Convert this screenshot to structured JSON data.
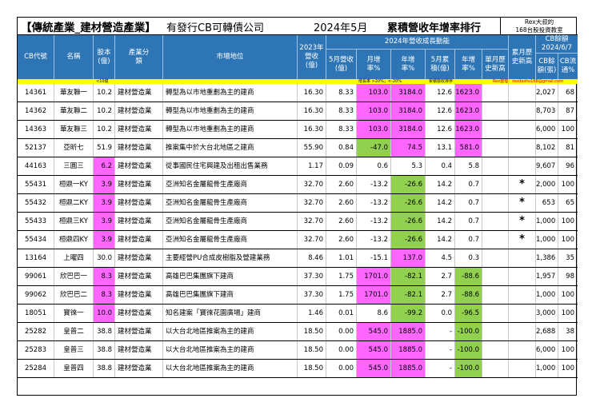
{
  "title": {
    "bracket": "【傳統產業_建材營造產業】",
    "subtitle": "有發行CB可轉債公司",
    "period": "2024年5月",
    "ranking": "累積營收年增率排行"
  },
  "brand": {
    "line1": "Rex大叔的",
    "line2": "168台股投資教室"
  },
  "headers": {
    "cb_code": "CB代號",
    "name": "名稱",
    "capital": "股本(億)",
    "industry": "產業分類",
    "market_position": "市場地位",
    "revenue_2023": "2023年營收(億)",
    "group_title": "2024年營收成長動能",
    "may_rev": "5月營收(億)",
    "mom": "月增率%",
    "yoy": "年增率%",
    "may_cum": "5月累積(億)",
    "cum_yoy": "年增率%",
    "month_high": "單月歷史新高",
    "cum_high": "累月歷史新高",
    "cb_balance_title": "CB餘額",
    "cb_date": "2024/6/7",
    "cb_amount": "CB餘額(張)",
    "cb_liquidity": "CB流通%"
  },
  "notes": {
    "capital_note": "<10億",
    "growth_note": "增長率 >20%；<-20%",
    "cum_note": "累積營收排序",
    "credit": "Rex整理：rexdashu168@gmail.com"
  },
  "colors": {
    "header_bg": "#2e75b6",
    "note_bg": "#ffff00",
    "pink": "#ff66ff",
    "green": "#92d050"
  },
  "rows": [
    {
      "code": "14361",
      "name": "華友聯一",
      "capital": "10.2",
      "industry": "建材營造業",
      "position": "轉型為以市地重劃為主的建商",
      "rev2023": "16.30",
      "may": "8.33",
      "mom": "103.0",
      "yoy": "3184.0",
      "cum": "12.6",
      "cum_yoy": "1623.0",
      "mh": "",
      "ch": "",
      "cb_amt": "2,027",
      "cb_pct": "68",
      "hl_cap": false,
      "mom_c": "pink",
      "yoy_c": "pink",
      "cyoy_c": "pink"
    },
    {
      "code": "14362",
      "name": "華友聯二",
      "capital": "10.2",
      "industry": "建材營造業",
      "position": "轉型為以市地重劃為主的建商",
      "rev2023": "16.30",
      "may": "8.33",
      "mom": "103.0",
      "yoy": "3184.0",
      "cum": "12.6",
      "cum_yoy": "1623.0",
      "mh": "",
      "ch": "",
      "cb_amt": "8,703",
      "cb_pct": "87",
      "hl_cap": false,
      "mom_c": "pink",
      "yoy_c": "pink",
      "cyoy_c": "pink"
    },
    {
      "code": "14363",
      "name": "華友聯三",
      "capital": "10.2",
      "industry": "建材營造業",
      "position": "轉型為以市地重劃為主的建商",
      "rev2023": "16.30",
      "may": "8.33",
      "mom": "103.0",
      "yoy": "3184.0",
      "cum": "12.6",
      "cum_yoy": "1623.0",
      "mh": "",
      "ch": "",
      "cb_amt": "6,000",
      "cb_pct": "100",
      "hl_cap": false,
      "mom_c": "pink",
      "yoy_c": "pink",
      "cyoy_c": "pink"
    },
    {
      "code": "52137",
      "name": "亞昕七",
      "capital": "51.9",
      "industry": "建材營造業",
      "position": "推案集中於大台北地區之建商",
      "rev2023": "55.90",
      "may": "0.84",
      "mom": "-47.0",
      "yoy": "74.5",
      "cum": "13.1",
      "cum_yoy": "581.0",
      "mh": "",
      "ch": "",
      "cb_amt": "8,102",
      "cb_pct": "81",
      "hl_cap": false,
      "mom_c": "green",
      "yoy_c": "pink",
      "cyoy_c": "pink"
    },
    {
      "code": "44163",
      "name": "三圓三",
      "capital": "6.2",
      "industry": "建材營造業",
      "position": "從事國民住宅興建及出租出售業務",
      "rev2023": "1.17",
      "may": "0.09",
      "mom": "0.6",
      "yoy": "5.3",
      "cum": "0.4",
      "cum_yoy": "5.8",
      "mh": "",
      "ch": "",
      "cb_amt": "9,607",
      "cb_pct": "96",
      "hl_cap": true,
      "mom_c": "",
      "yoy_c": "",
      "cyoy_c": ""
    },
    {
      "code": "55431",
      "name": "桓鼎一KY",
      "capital": "3.9",
      "industry": "建材營造業",
      "position": "亞洲知名金屬龍骨生產廠商",
      "rev2023": "32.70",
      "may": "2.60",
      "mom": "-13.2",
      "yoy": "-26.6",
      "cum": "14.2",
      "cum_yoy": "0.7",
      "mh": "",
      "ch": "*",
      "cb_amt": "2,000",
      "cb_pct": "100",
      "hl_cap": true,
      "mom_c": "",
      "yoy_c": "green",
      "cyoy_c": ""
    },
    {
      "code": "55432",
      "name": "桓鼎二KY",
      "capital": "3.9",
      "industry": "建材營造業",
      "position": "亞洲知名金屬龍骨生產廠商",
      "rev2023": "32.70",
      "may": "2.60",
      "mom": "-13.2",
      "yoy": "-26.6",
      "cum": "14.2",
      "cum_yoy": "0.7",
      "mh": "",
      "ch": "*",
      "cb_amt": "653",
      "cb_pct": "65",
      "hl_cap": true,
      "mom_c": "",
      "yoy_c": "green",
      "cyoy_c": ""
    },
    {
      "code": "55433",
      "name": "桓鼎三KY",
      "capital": "3.9",
      "industry": "建材營造業",
      "position": "亞洲知名金屬龍骨生產廠商",
      "rev2023": "32.70",
      "may": "2.60",
      "mom": "-13.2",
      "yoy": "-26.6",
      "cum": "14.2",
      "cum_yoy": "0.7",
      "mh": "",
      "ch": "*",
      "cb_amt": "1,000",
      "cb_pct": "100",
      "hl_cap": true,
      "mom_c": "",
      "yoy_c": "green",
      "cyoy_c": ""
    },
    {
      "code": "55434",
      "name": "桓鼎四KY",
      "capital": "3.9",
      "industry": "建材營造業",
      "position": "亞洲知名金屬龍骨生產廠商",
      "rev2023": "32.70",
      "may": "2.60",
      "mom": "-13.2",
      "yoy": "-26.6",
      "cum": "14.2",
      "cum_yoy": "0.7",
      "mh": "",
      "ch": "*",
      "cb_amt": "1,000",
      "cb_pct": "100",
      "hl_cap": true,
      "mom_c": "",
      "yoy_c": "green",
      "cyoy_c": ""
    },
    {
      "code": "13164",
      "name": "上曜四",
      "capital": "30.0",
      "industry": "建材營造業",
      "position": "主要經營PU合成皮樹脂及營建業務",
      "rev2023": "8.46",
      "may": "1.01",
      "mom": "-15.1",
      "yoy": "137.0",
      "cum": "4.5",
      "cum_yoy": "0.3",
      "mh": "",
      "ch": "",
      "cb_amt": "1,386",
      "cb_pct": "35",
      "hl_cap": false,
      "mom_c": "",
      "yoy_c": "pink",
      "cyoy_c": ""
    },
    {
      "code": "99061",
      "name": "欣巴巴一",
      "capital": "8.3",
      "industry": "建材營造業",
      "position": "高雄巴巴集團旗下建商",
      "rev2023": "37.30",
      "may": "1.75",
      "mom": "1701.0",
      "yoy": "-82.1",
      "cum": "2.7",
      "cum_yoy": "-88.6",
      "mh": "",
      "ch": "",
      "cb_amt": "1,957",
      "cb_pct": "98",
      "hl_cap": true,
      "mom_c": "pink",
      "yoy_c": "green",
      "cyoy_c": "green"
    },
    {
      "code": "99062",
      "name": "欣巴巴二",
      "capital": "8.3",
      "industry": "建材營造業",
      "position": "高雄巴巴集團旗下建商",
      "rev2023": "37.30",
      "may": "1.75",
      "mom": "1701.0",
      "yoy": "-82.1",
      "cum": "2.7",
      "cum_yoy": "-88.6",
      "mh": "",
      "ch": "",
      "cb_amt": "1,000",
      "cb_pct": "100",
      "hl_cap": true,
      "mom_c": "pink",
      "yoy_c": "green",
      "cyoy_c": "green"
    },
    {
      "code": "18051",
      "name": "寶徠一",
      "capital": "10.0",
      "industry": "建材營造業",
      "position": "知名建案「寶徠花園廣場」建商",
      "rev2023": "1.46",
      "may": "0.01",
      "mom": "8.6",
      "yoy": "-99.2",
      "cum": "0.0",
      "cum_yoy": "-96.5",
      "mh": "",
      "ch": "",
      "cb_amt": "3,000",
      "cb_pct": "100",
      "hl_cap": true,
      "mom_c": "",
      "yoy_c": "green",
      "cyoy_c": "green"
    },
    {
      "code": "25282",
      "name": "皇普二",
      "capital": "38.8",
      "industry": "建材營造業",
      "position": "以大台北地區推案為主的建商",
      "rev2023": "18.50",
      "may": "0.00",
      "mom": "545.0",
      "yoy": "1885.0",
      "cum": "-",
      "cum_yoy": "-100.0",
      "mh": "",
      "ch": "",
      "cb_amt": "2,688",
      "cb_pct": "38",
      "hl_cap": false,
      "mom_c": "pink",
      "yoy_c": "pink",
      "cyoy_c": "green"
    },
    {
      "code": "25283",
      "name": "皇普三",
      "capital": "38.8",
      "industry": "建材營造業",
      "position": "以大台北地區推案為主的建商",
      "rev2023": "18.50",
      "may": "0.00",
      "mom": "545.0",
      "yoy": "1885.0",
      "cum": "-",
      "cum_yoy": "-100.0",
      "mh": "",
      "ch": "",
      "cb_amt": "6,000",
      "cb_pct": "100",
      "hl_cap": false,
      "mom_c": "pink",
      "yoy_c": "pink",
      "cyoy_c": "green"
    },
    {
      "code": "25284",
      "name": "皇普四",
      "capital": "38.8",
      "industry": "建材營造業",
      "position": "以大台北地區推案為主的建商",
      "rev2023": "18.50",
      "may": "0.00",
      "mom": "545.0",
      "yoy": "1885.0",
      "cum": "-",
      "cum_yoy": "-100.0",
      "mh": "",
      "ch": "",
      "cb_amt": "1,000",
      "cb_pct": "100",
      "hl_cap": false,
      "mom_c": "pink",
      "yoy_c": "pink",
      "cyoy_c": "green"
    }
  ]
}
